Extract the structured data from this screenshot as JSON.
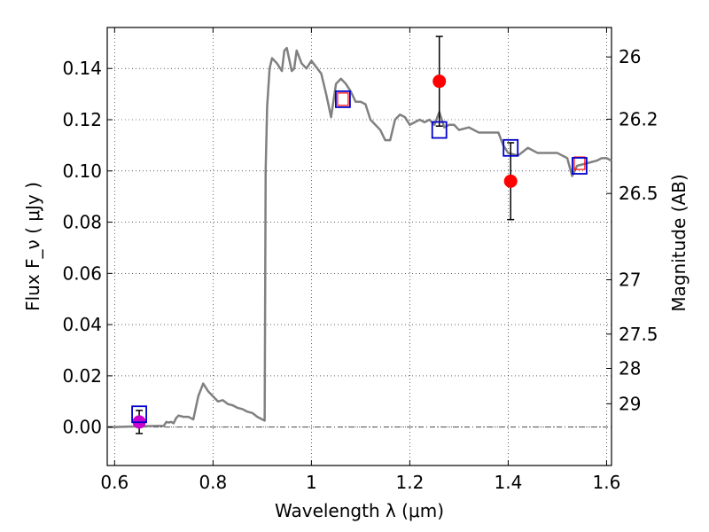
{
  "chart_data": {
    "type": "line",
    "xlabel": "Wavelength  λ (μm)",
    "ylabel": "Flux  F_ν  ( μJy )",
    "ylabel_right": "Magnitude (AB)",
    "xlim": [
      0.585,
      1.61
    ],
    "ylim": [
      -0.015,
      0.156
    ],
    "grid": true,
    "x_ticks": [
      0.6,
      0.8,
      1.0,
      1.2,
      1.4,
      1.6
    ],
    "x_tick_labels": [
      "0.6",
      "0.8",
      "1",
      "1.2",
      "1.4",
      "1.6"
    ],
    "y_ticks": [
      0.0,
      0.02,
      0.04,
      0.06,
      0.08,
      0.1,
      0.12,
      0.14
    ],
    "y_tick_labels": [
      "0.00",
      "0.02",
      "0.04",
      "0.06",
      "0.08",
      "0.10",
      "0.12",
      "0.14"
    ],
    "right_ticks": [
      {
        "label": "26",
        "flux": 0.1445
      },
      {
        "label": "26.2",
        "flux": 0.1202
      },
      {
        "label": "26.5",
        "flux": 0.0912
      },
      {
        "label": "27",
        "flux": 0.0575
      },
      {
        "label": "27.5",
        "flux": 0.0363
      },
      {
        "label": "28",
        "flux": 0.0229
      },
      {
        "label": "29",
        "flux": 0.0091
      }
    ],
    "model_sed": {
      "color": "#808080",
      "x": [
        0.585,
        0.6,
        0.65,
        0.7,
        0.705,
        0.71,
        0.715,
        0.72,
        0.725,
        0.73,
        0.74,
        0.75,
        0.755,
        0.76,
        0.77,
        0.78,
        0.79,
        0.8,
        0.81,
        0.82,
        0.83,
        0.84,
        0.85,
        0.86,
        0.87,
        0.88,
        0.89,
        0.9,
        0.905,
        0.907,
        0.91,
        0.915,
        0.92,
        0.93,
        0.94,
        0.945,
        0.95,
        0.96,
        0.965,
        0.97,
        0.98,
        0.99,
        1.0,
        1.02,
        1.03,
        1.04,
        1.05,
        1.06,
        1.07,
        1.08,
        1.09,
        1.1,
        1.11,
        1.12,
        1.13,
        1.14,
        1.15,
        1.16,
        1.17,
        1.18,
        1.19,
        1.2,
        1.21,
        1.22,
        1.23,
        1.24,
        1.25,
        1.26,
        1.27,
        1.28,
        1.29,
        1.3,
        1.32,
        1.34,
        1.36,
        1.38,
        1.39,
        1.4,
        1.42,
        1.44,
        1.46,
        1.48,
        1.5,
        1.52,
        1.53,
        1.54,
        1.56,
        1.58,
        1.59,
        1.6,
        1.61
      ],
      "y": [
        0.0,
        0.0,
        0.0003,
        0.0005,
        0.002,
        0.0018,
        0.002,
        0.0015,
        0.0035,
        0.0045,
        0.004,
        0.004,
        0.0035,
        0.003,
        0.012,
        0.017,
        0.014,
        0.012,
        0.01,
        0.0105,
        0.009,
        0.0085,
        0.0075,
        0.007,
        0.006,
        0.0055,
        0.004,
        0.003,
        0.0025,
        0.1,
        0.125,
        0.14,
        0.144,
        0.142,
        0.139,
        0.147,
        0.148,
        0.139,
        0.14,
        0.147,
        0.142,
        0.14,
        0.143,
        0.138,
        0.13,
        0.121,
        0.134,
        0.136,
        0.134,
        0.131,
        0.127,
        0.127,
        0.126,
        0.12,
        0.118,
        0.116,
        0.112,
        0.112,
        0.12,
        0.122,
        0.121,
        0.118,
        0.119,
        0.12,
        0.119,
        0.12,
        0.118,
        0.123,
        0.117,
        0.118,
        0.118,
        0.116,
        0.117,
        0.115,
        0.115,
        0.115,
        0.11,
        0.107,
        0.106,
        0.109,
        0.107,
        0.107,
        0.107,
        0.105,
        0.098,
        0.102,
        0.103,
        0.104,
        0.105,
        0.105,
        0.104
      ]
    },
    "model_photometry": {
      "name": "open squares",
      "x": [
        0.65,
        1.064,
        1.26,
        1.405,
        1.545
      ],
      "y": [
        0.005,
        0.128,
        0.116,
        0.109,
        0.102
      ],
      "color": "#0000cc"
    },
    "observed_marker_outline": {
      "x": [
        1.064,
        1.545
      ],
      "y": [
        0.128,
        0.103
      ],
      "color": "#ff0000"
    },
    "observed_detections": {
      "x": [
        1.26,
        1.405
      ],
      "y": [
        0.135,
        0.096
      ],
      "yerr": [
        0.0175,
        0.015
      ],
      "color": "#ff0000"
    },
    "upper_limit": {
      "x": [
        0.65
      ],
      "y": [
        0.002
      ],
      "yerr": [
        0.0045
      ],
      "color": "#cc00cc"
    },
    "zero_line": {
      "y": 0.0,
      "style": "dash-dot"
    }
  }
}
